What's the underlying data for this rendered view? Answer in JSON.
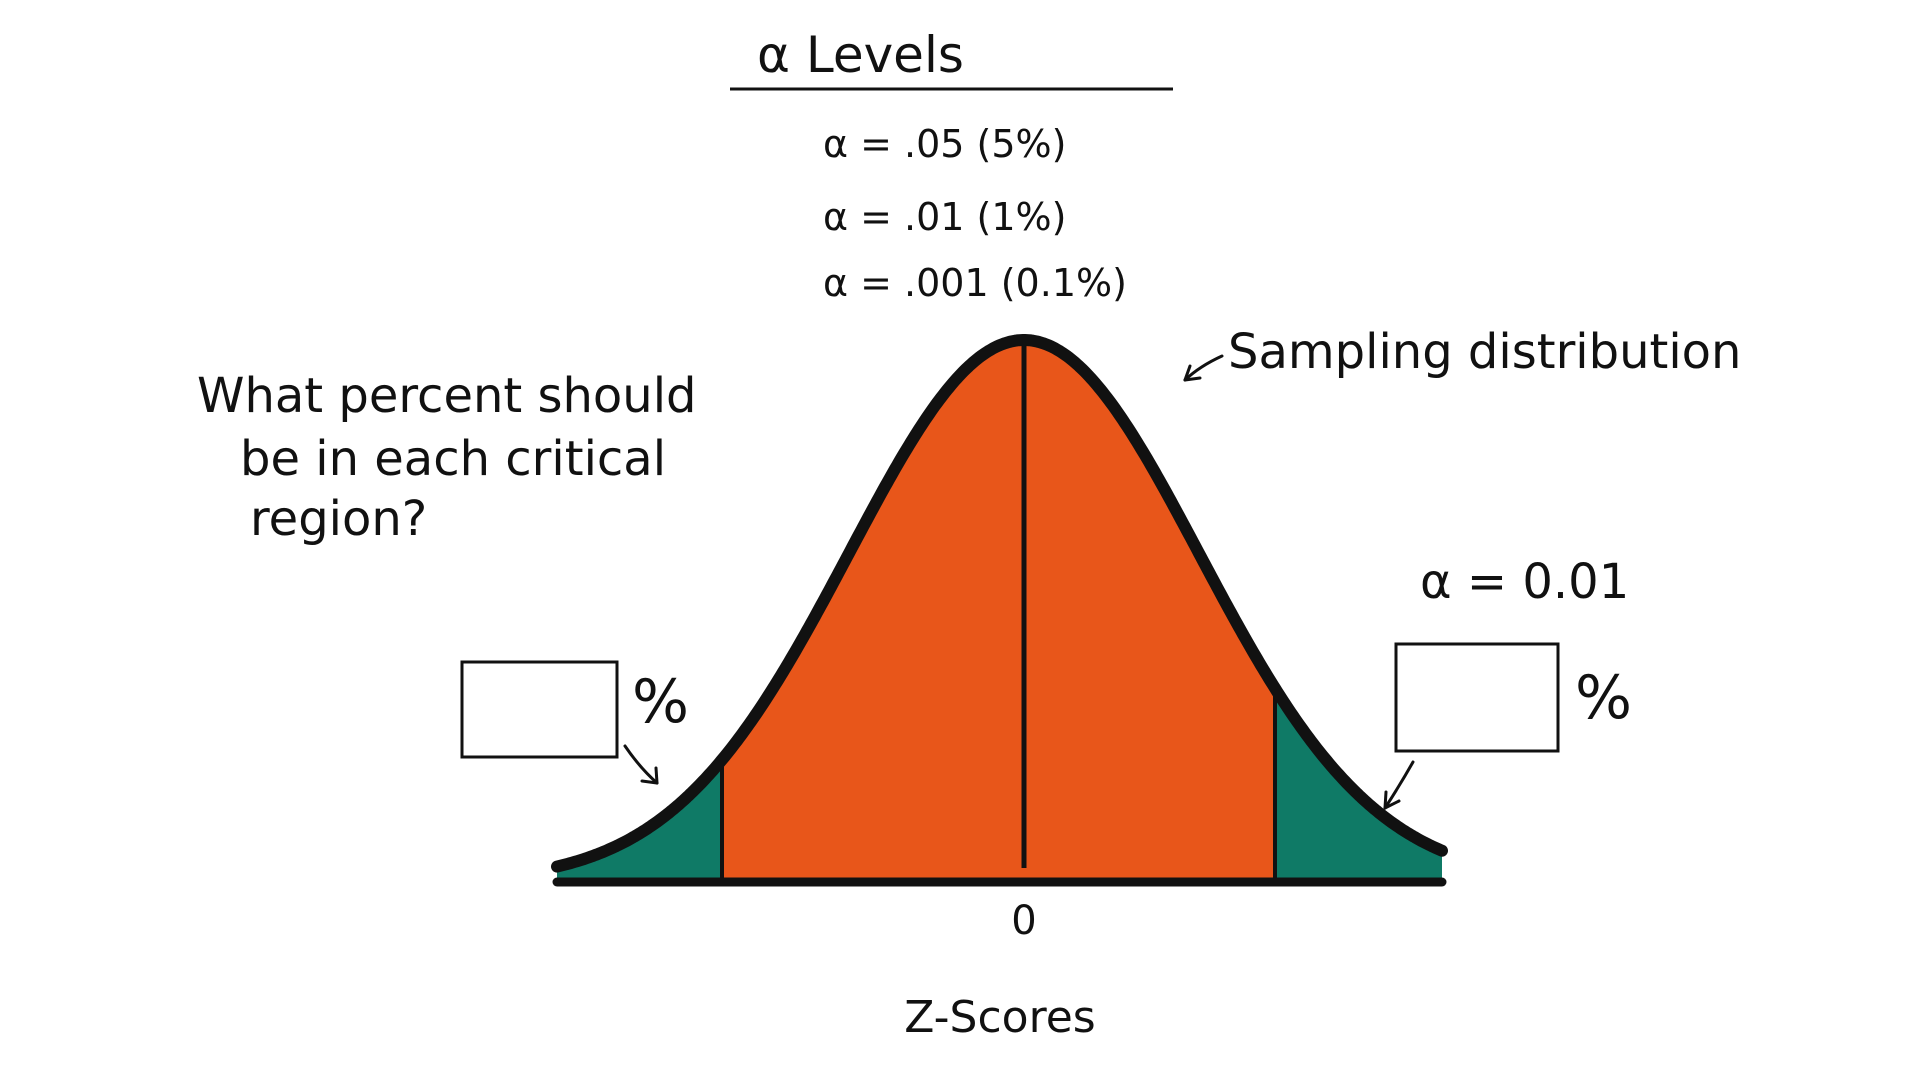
{
  "title": "α Levels",
  "alpha_levels": [
    "α = .05 (5%)",
    "α = .01 (1%)",
    "α = .001 (0.1%)"
  ],
  "question_lines": [
    "What percent should",
    "be in each critical",
    "region?"
  ],
  "curve_label": "Sampling distribution",
  "alpha_selected": "α = 0.01",
  "left_box": {
    "value": "",
    "unit": "%"
  },
  "right_box": {
    "value": "",
    "unit": "%"
  },
  "x_tick_zero": "0",
  "x_axis_label": "Z-Scores",
  "colors": {
    "body_fill": "#E8561A",
    "tail_fill": "#0F7A66",
    "outline": "#111111",
    "background": "#ffffff"
  }
}
